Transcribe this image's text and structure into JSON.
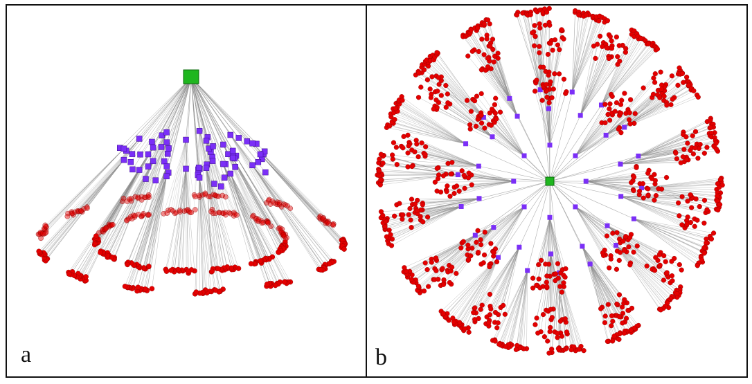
{
  "figure": {
    "panels": [
      {
        "id": "a",
        "label": "a"
      },
      {
        "id": "b",
        "label": "b"
      }
    ]
  },
  "colors": {
    "root": "#1fb61f",
    "hub": "#7b2ff7",
    "leaf": "#e40000",
    "edge": "#8a8a8a",
    "border": "#111111"
  },
  "tree": {
    "root_count": 1,
    "hub_count": 40,
    "leaves_per_hub": 30
  }
}
